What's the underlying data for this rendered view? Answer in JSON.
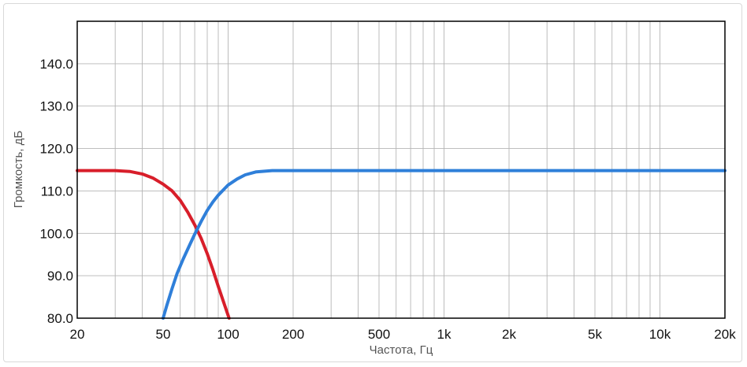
{
  "chart_data": {
    "type": "line",
    "xlabel": "Частота, Гц",
    "ylabel": "Громкость, дБ",
    "xscale": "log",
    "xlim": [
      20,
      20000
    ],
    "ylim": [
      80,
      150
    ],
    "grid": true,
    "x_ticks": [
      {
        "value": 20,
        "label": "20"
      },
      {
        "value": 50,
        "label": "50"
      },
      {
        "value": 100,
        "label": "100"
      },
      {
        "value": 200,
        "label": "200"
      },
      {
        "value": 500,
        "label": "500"
      },
      {
        "value": 1000,
        "label": "1k"
      },
      {
        "value": 2000,
        "label": "2k"
      },
      {
        "value": 5000,
        "label": "5k"
      },
      {
        "value": 10000,
        "label": "10k"
      },
      {
        "value": 20000,
        "label": "20k"
      }
    ],
    "y_ticks": [
      {
        "value": 80,
        "label": "80.0"
      },
      {
        "value": 90,
        "label": "90.0"
      },
      {
        "value": 100,
        "label": "100.0"
      },
      {
        "value": 110,
        "label": "110.0"
      },
      {
        "value": 120,
        "label": "120.0"
      },
      {
        "value": 130,
        "label": "130.0"
      },
      {
        "value": 140,
        "label": "140.0"
      }
    ],
    "series": [
      {
        "color": "#d81e2a",
        "points": [
          [
            20,
            114.8
          ],
          [
            25,
            114.8
          ],
          [
            30,
            114.8
          ],
          [
            35,
            114.6
          ],
          [
            40,
            114.0
          ],
          [
            45,
            113.0
          ],
          [
            50,
            111.6
          ],
          [
            55,
            110.0
          ],
          [
            60,
            107.8
          ],
          [
            65,
            105.0
          ],
          [
            70,
            102.0
          ],
          [
            75,
            98.8
          ],
          [
            80,
            95.2
          ],
          [
            85,
            91.4
          ],
          [
            90,
            87.5
          ],
          [
            95,
            84.0
          ],
          [
            101,
            80.0
          ]
        ]
      },
      {
        "color": "#2f7fd9",
        "points": [
          [
            50,
            80.0
          ],
          [
            52,
            83.0
          ],
          [
            55,
            87.0
          ],
          [
            58,
            90.5
          ],
          [
            62,
            94.0
          ],
          [
            66,
            97.0
          ],
          [
            70,
            99.8
          ],
          [
            75,
            102.8
          ],
          [
            80,
            105.4
          ],
          [
            85,
            107.4
          ],
          [
            90,
            109.0
          ],
          [
            100,
            111.4
          ],
          [
            110,
            112.8
          ],
          [
            120,
            113.8
          ],
          [
            135,
            114.5
          ],
          [
            160,
            114.8
          ],
          [
            200,
            114.8
          ],
          [
            500,
            114.8
          ],
          [
            1000,
            114.8
          ],
          [
            5000,
            114.8
          ],
          [
            20000,
            114.8
          ]
        ]
      }
    ]
  }
}
